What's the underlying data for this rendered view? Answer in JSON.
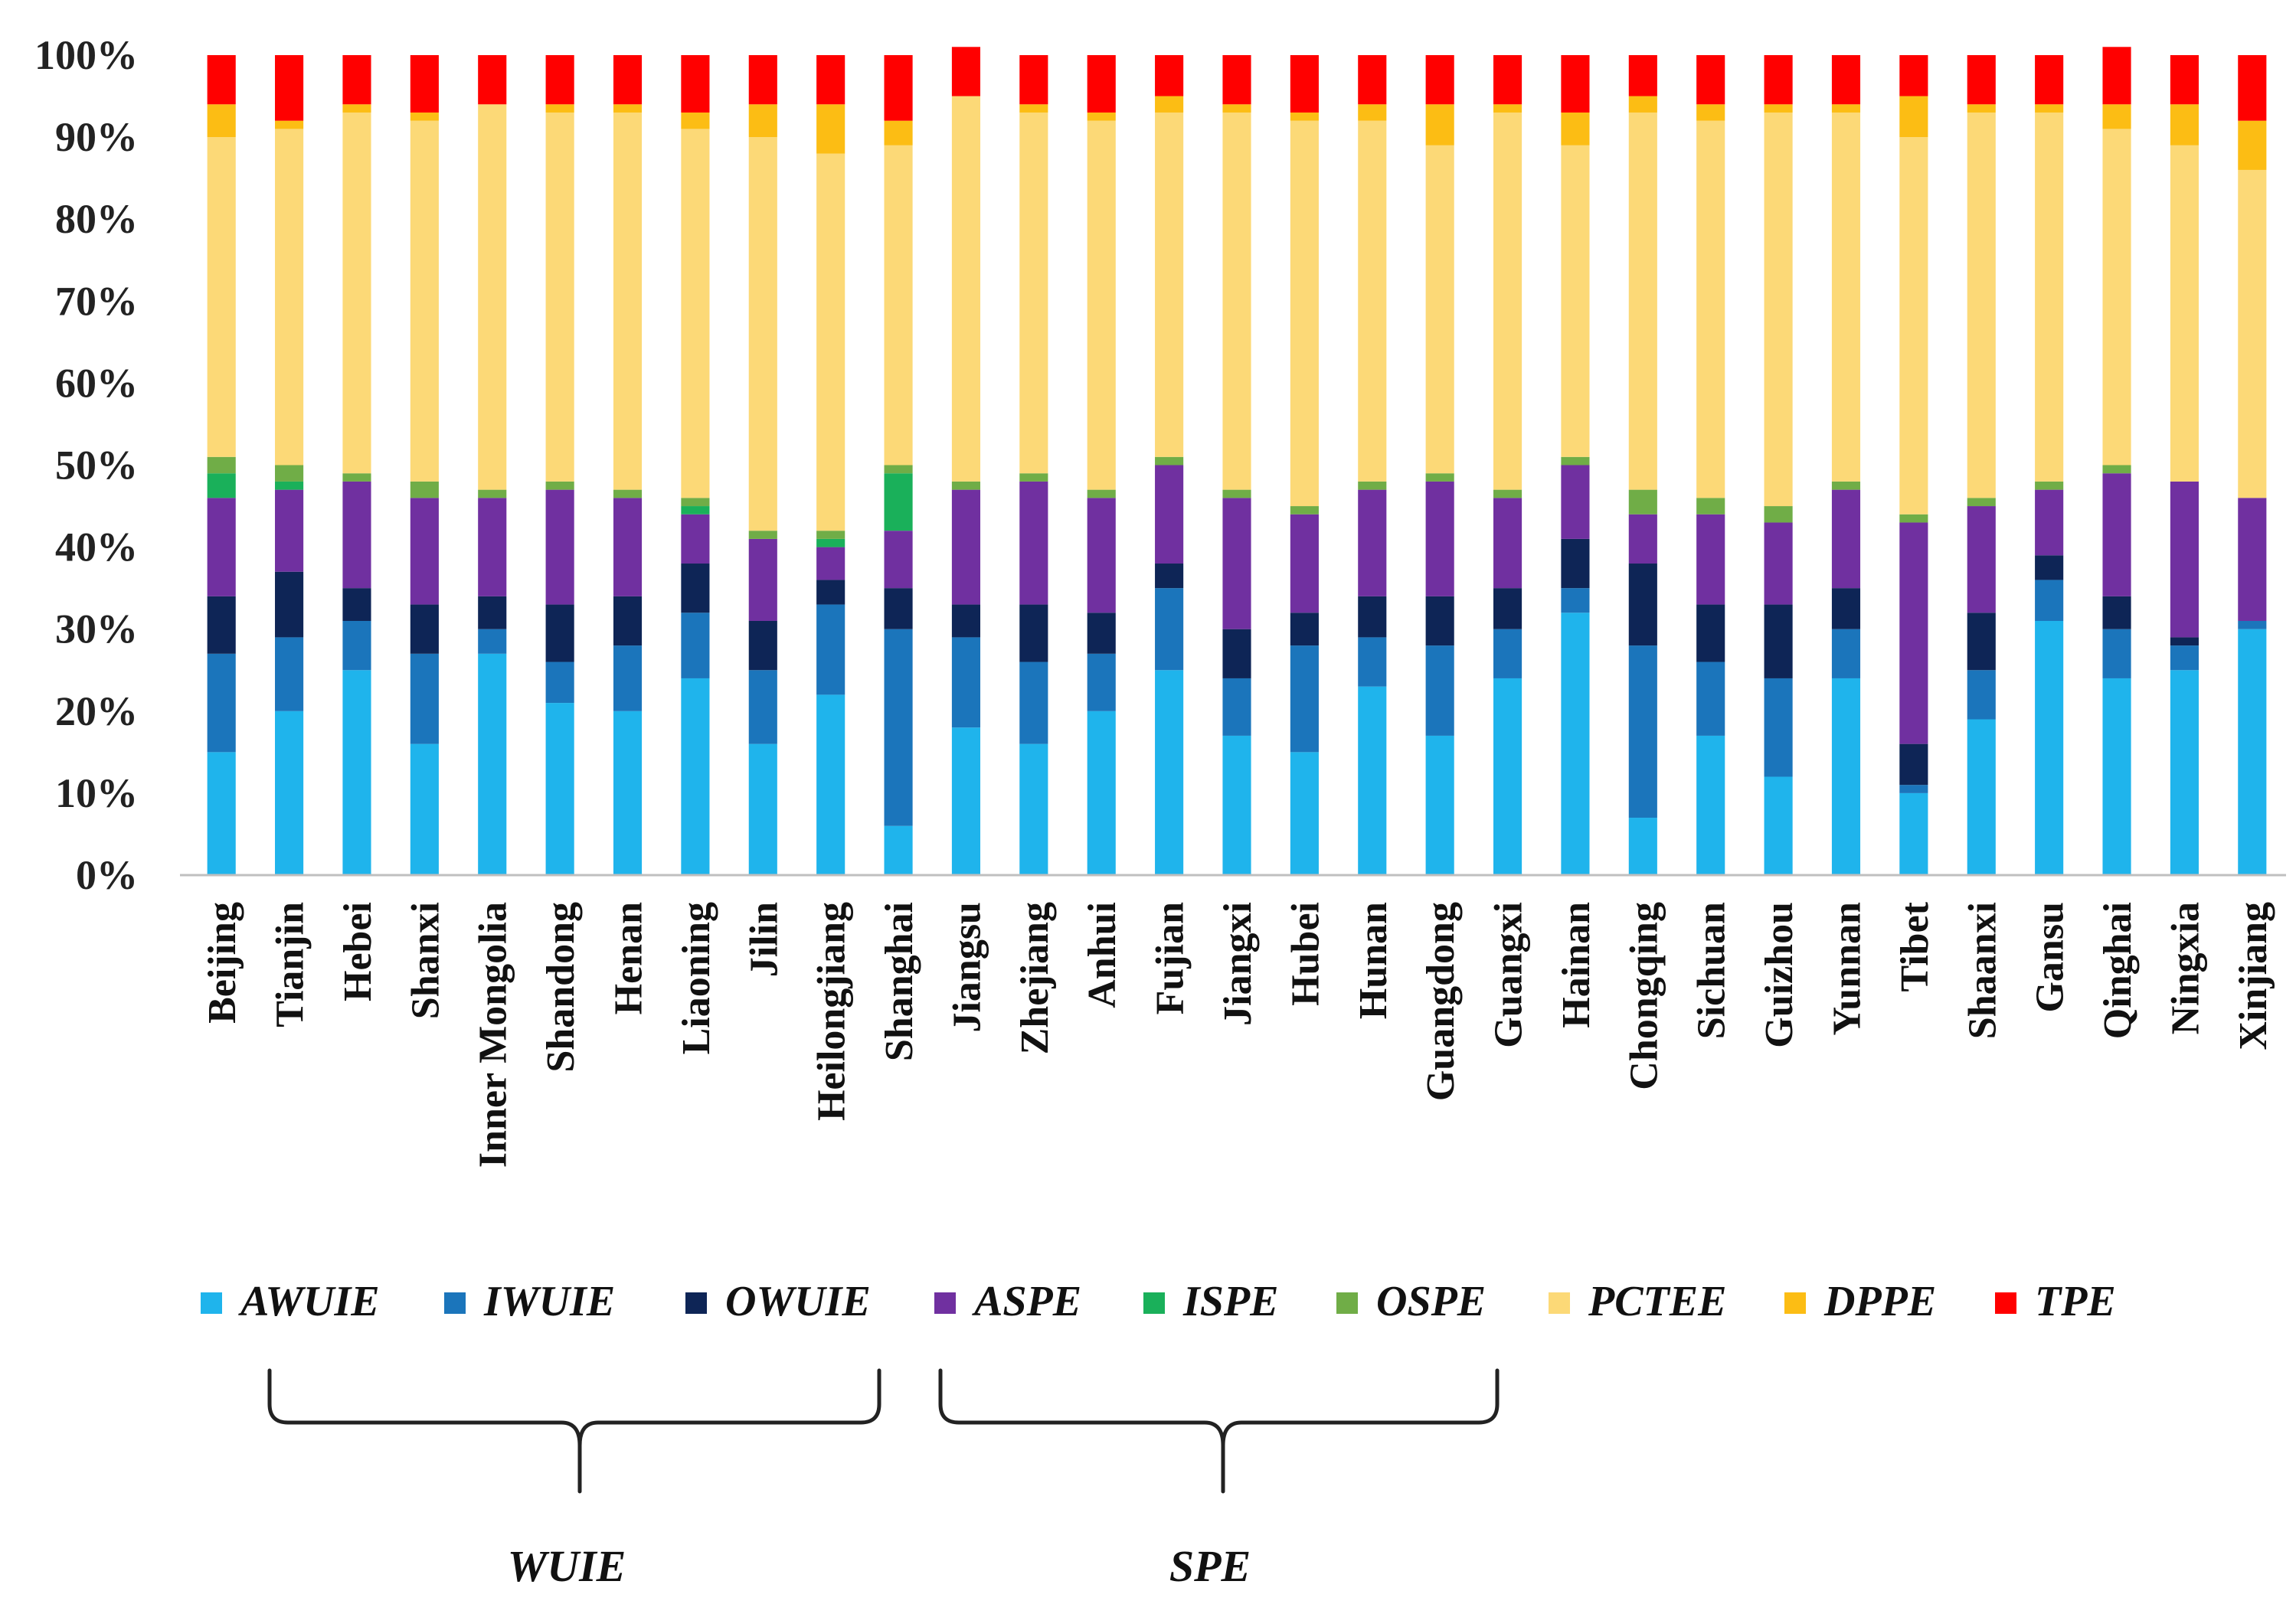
{
  "chart_data": {
    "type": "bar",
    "stacked": true,
    "percent": true,
    "ylim": [
      0,
      100
    ],
    "ytick_labels": [
      "0%",
      "10%",
      "20%",
      "30%",
      "40%",
      "50%",
      "60%",
      "70%",
      "80%",
      "90%",
      "100%"
    ],
    "categories": [
      "Beijing",
      "Tianjin",
      "Hebei",
      "Shanxi",
      "Inner Mongolia",
      "Shandong",
      "Henan",
      "Liaoning",
      "Jilin",
      "Heilongjiang",
      "Shanghai",
      "Jiangsu",
      "Zhejiang",
      "Anhui",
      "Fujian",
      "Jiangxi",
      "Hubei",
      "Hunan",
      "Guangdong",
      "Guangxi",
      "Hainan",
      "Chongqing",
      "Sichuan",
      "Guizhou",
      "Yunnan",
      "Tibet",
      "Shaanxi",
      "Gansu",
      "Qinghai",
      "Ningxia",
      "Xinjiang"
    ],
    "series": [
      {
        "name": "AWUIE",
        "color": "#1fb4ec",
        "values": [
          15,
          20,
          25,
          16,
          27,
          21,
          20,
          24,
          16,
          22,
          6,
          18,
          16,
          20,
          25,
          17,
          15,
          23,
          17,
          24,
          32,
          7,
          17,
          12,
          24,
          10,
          19,
          31,
          24,
          25,
          30
        ]
      },
      {
        "name": "IWUIE",
        "color": "#1b75bb",
        "values": [
          12,
          9,
          6,
          11,
          3,
          5,
          8,
          8,
          9,
          11,
          24,
          11,
          10,
          7,
          10,
          7,
          13,
          6,
          11,
          6,
          3,
          21,
          9,
          12,
          6,
          1,
          6,
          5,
          6,
          3,
          1
        ]
      },
      {
        "name": "OWUIE",
        "color": "#0e2556",
        "values": [
          7,
          8,
          4,
          6,
          4,
          7,
          6,
          6,
          6,
          3,
          5,
          4,
          7,
          5,
          3,
          6,
          4,
          5,
          6,
          5,
          6,
          10,
          7,
          9,
          5,
          5,
          7,
          3,
          4,
          1,
          0
        ]
      },
      {
        "name": "ASPE",
        "color": "#7030a0",
        "values": [
          12,
          10,
          13,
          13,
          12,
          14,
          12,
          6,
          10,
          4,
          7,
          14,
          15,
          14,
          12,
          16,
          12,
          13,
          14,
          11,
          9,
          6,
          11,
          10,
          12,
          27,
          13,
          8,
          15,
          19,
          15
        ]
      },
      {
        "name": "ISPE",
        "color": "#1ab05a",
        "values": [
          3,
          1,
          0,
          0,
          0,
          0,
          0,
          1,
          0,
          1,
          7,
          0,
          0,
          0,
          0,
          0,
          0,
          0,
          0,
          0,
          0,
          0,
          0,
          0,
          0,
          0,
          0,
          0,
          0,
          0,
          0
        ]
      },
      {
        "name": "OSPE",
        "color": "#70ad47",
        "values": [
          2,
          2,
          1,
          2,
          1,
          1,
          1,
          1,
          1,
          1,
          1,
          1,
          1,
          1,
          1,
          1,
          1,
          1,
          1,
          1,
          1,
          3,
          2,
          2,
          1,
          1,
          1,
          1,
          1,
          0,
          0
        ]
      },
      {
        "name": "PCTEE",
        "color": "#fcd977",
        "values": [
          39,
          41,
          44,
          44,
          47,
          45,
          46,
          45,
          48,
          46,
          39,
          47,
          44,
          45,
          42,
          46,
          47,
          44,
          40,
          46,
          38,
          46,
          46,
          48,
          45,
          46,
          47,
          45,
          41,
          41,
          40
        ]
      },
      {
        "name": "DPPE",
        "color": "#fcbd14",
        "values": [
          4,
          1,
          1,
          1,
          0,
          1,
          1,
          2,
          4,
          6,
          3,
          0,
          1,
          1,
          2,
          1,
          1,
          2,
          5,
          1,
          4,
          2,
          2,
          1,
          1,
          5,
          1,
          1,
          3,
          5,
          6
        ]
      },
      {
        "name": "TPE",
        "color": "#ff0000",
        "values": [
          6,
          8,
          6,
          7,
          6,
          6,
          6,
          7,
          6,
          6,
          8,
          6,
          6,
          7,
          5,
          6,
          7,
          6,
          6,
          6,
          7,
          5,
          6,
          6,
          6,
          5,
          6,
          6,
          7,
          6,
          8
        ]
      }
    ],
    "groups": [
      {
        "label": "WUIE",
        "members": [
          "AWUIE",
          "IWUIE",
          "OWUIE"
        ]
      },
      {
        "label": "SPE",
        "members": [
          "ASPE",
          "ISPE",
          "OSPE"
        ]
      }
    ]
  }
}
